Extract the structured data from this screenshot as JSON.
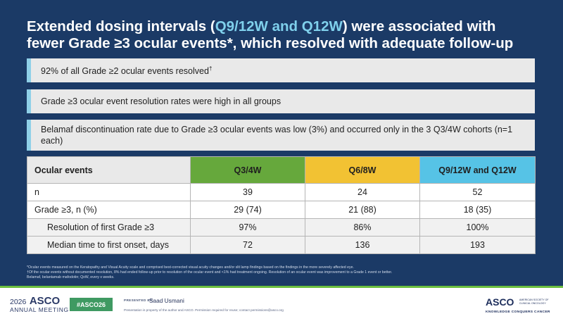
{
  "title": {
    "part1": "Extended dosing intervals (",
    "highlight": "Q9/12W and Q12W",
    "part2": ") were associated with fewer Grade ≥3 ocular events*, which resolved with adequate follow-up"
  },
  "banners": [
    {
      "text": "92% of all Grade ≥2 ocular events resolved",
      "sup": "†"
    },
    {
      "text": "Grade ≥3 ocular event resolution rates were high in all groups"
    },
    {
      "text": "Belamaf discontinuation rate due to Grade ≥3 ocular events was low (3%) and occurred only in the 3 Q3/4W cohorts (n=1 each)"
    }
  ],
  "table": {
    "headers": [
      "Ocular events",
      "Q3/4W",
      "Q6/8W",
      "Q9/12W and Q12W"
    ],
    "header_colors": [
      "#e9e9e9",
      "#66a83c",
      "#f2c233",
      "#56c3e6"
    ],
    "rows": [
      {
        "label": "n",
        "values": [
          "39",
          "24",
          "52"
        ]
      },
      {
        "label": "Grade ≥3, n (%)",
        "values": [
          "29 (74)",
          "21 (88)",
          "18 (35)"
        ]
      },
      {
        "label": "Resolution of first Grade ≥3",
        "values": [
          "97%",
          "86%",
          "100%"
        ]
      },
      {
        "label": "Median time to first onset, days",
        "values": [
          "72",
          "136",
          "193"
        ]
      }
    ]
  },
  "footnotes": [
    "*Ocular events measured on the Keratopathy and Visual Acuity scale and comprised best-corrected visual acuity changes and/or slit lamp findings based on the findings in the more severely affected eye.",
    "†Of the ocular events without documented resolution, 8% had ended follow-up prior to resolution of the ocular event and <1% had treatment ongoing. Resolution of an ocular event was improvement to a Grade 1 event or better.",
    "Belamaf, belantamab mafodotin; QxW, every x weeks."
  ],
  "bottom": {
    "year": "2026",
    "asco": "ASCO",
    "annual_meeting": "ANNUAL MEETING",
    "hashtag": "#ASCO26",
    "presented_by": "PRESENTED BY:",
    "presenter": "Saad Usmani",
    "notice": "Presentation is property of the author and ASCO. Permission required for reuse; contact permissions@asco.org",
    "society_logo": "ASCO",
    "society_name": "AMERICAN SOCIETY OF CLINICAL ONCOLOGY",
    "tagline": "KNOWLEDGE CONQUERS CANCER"
  }
}
